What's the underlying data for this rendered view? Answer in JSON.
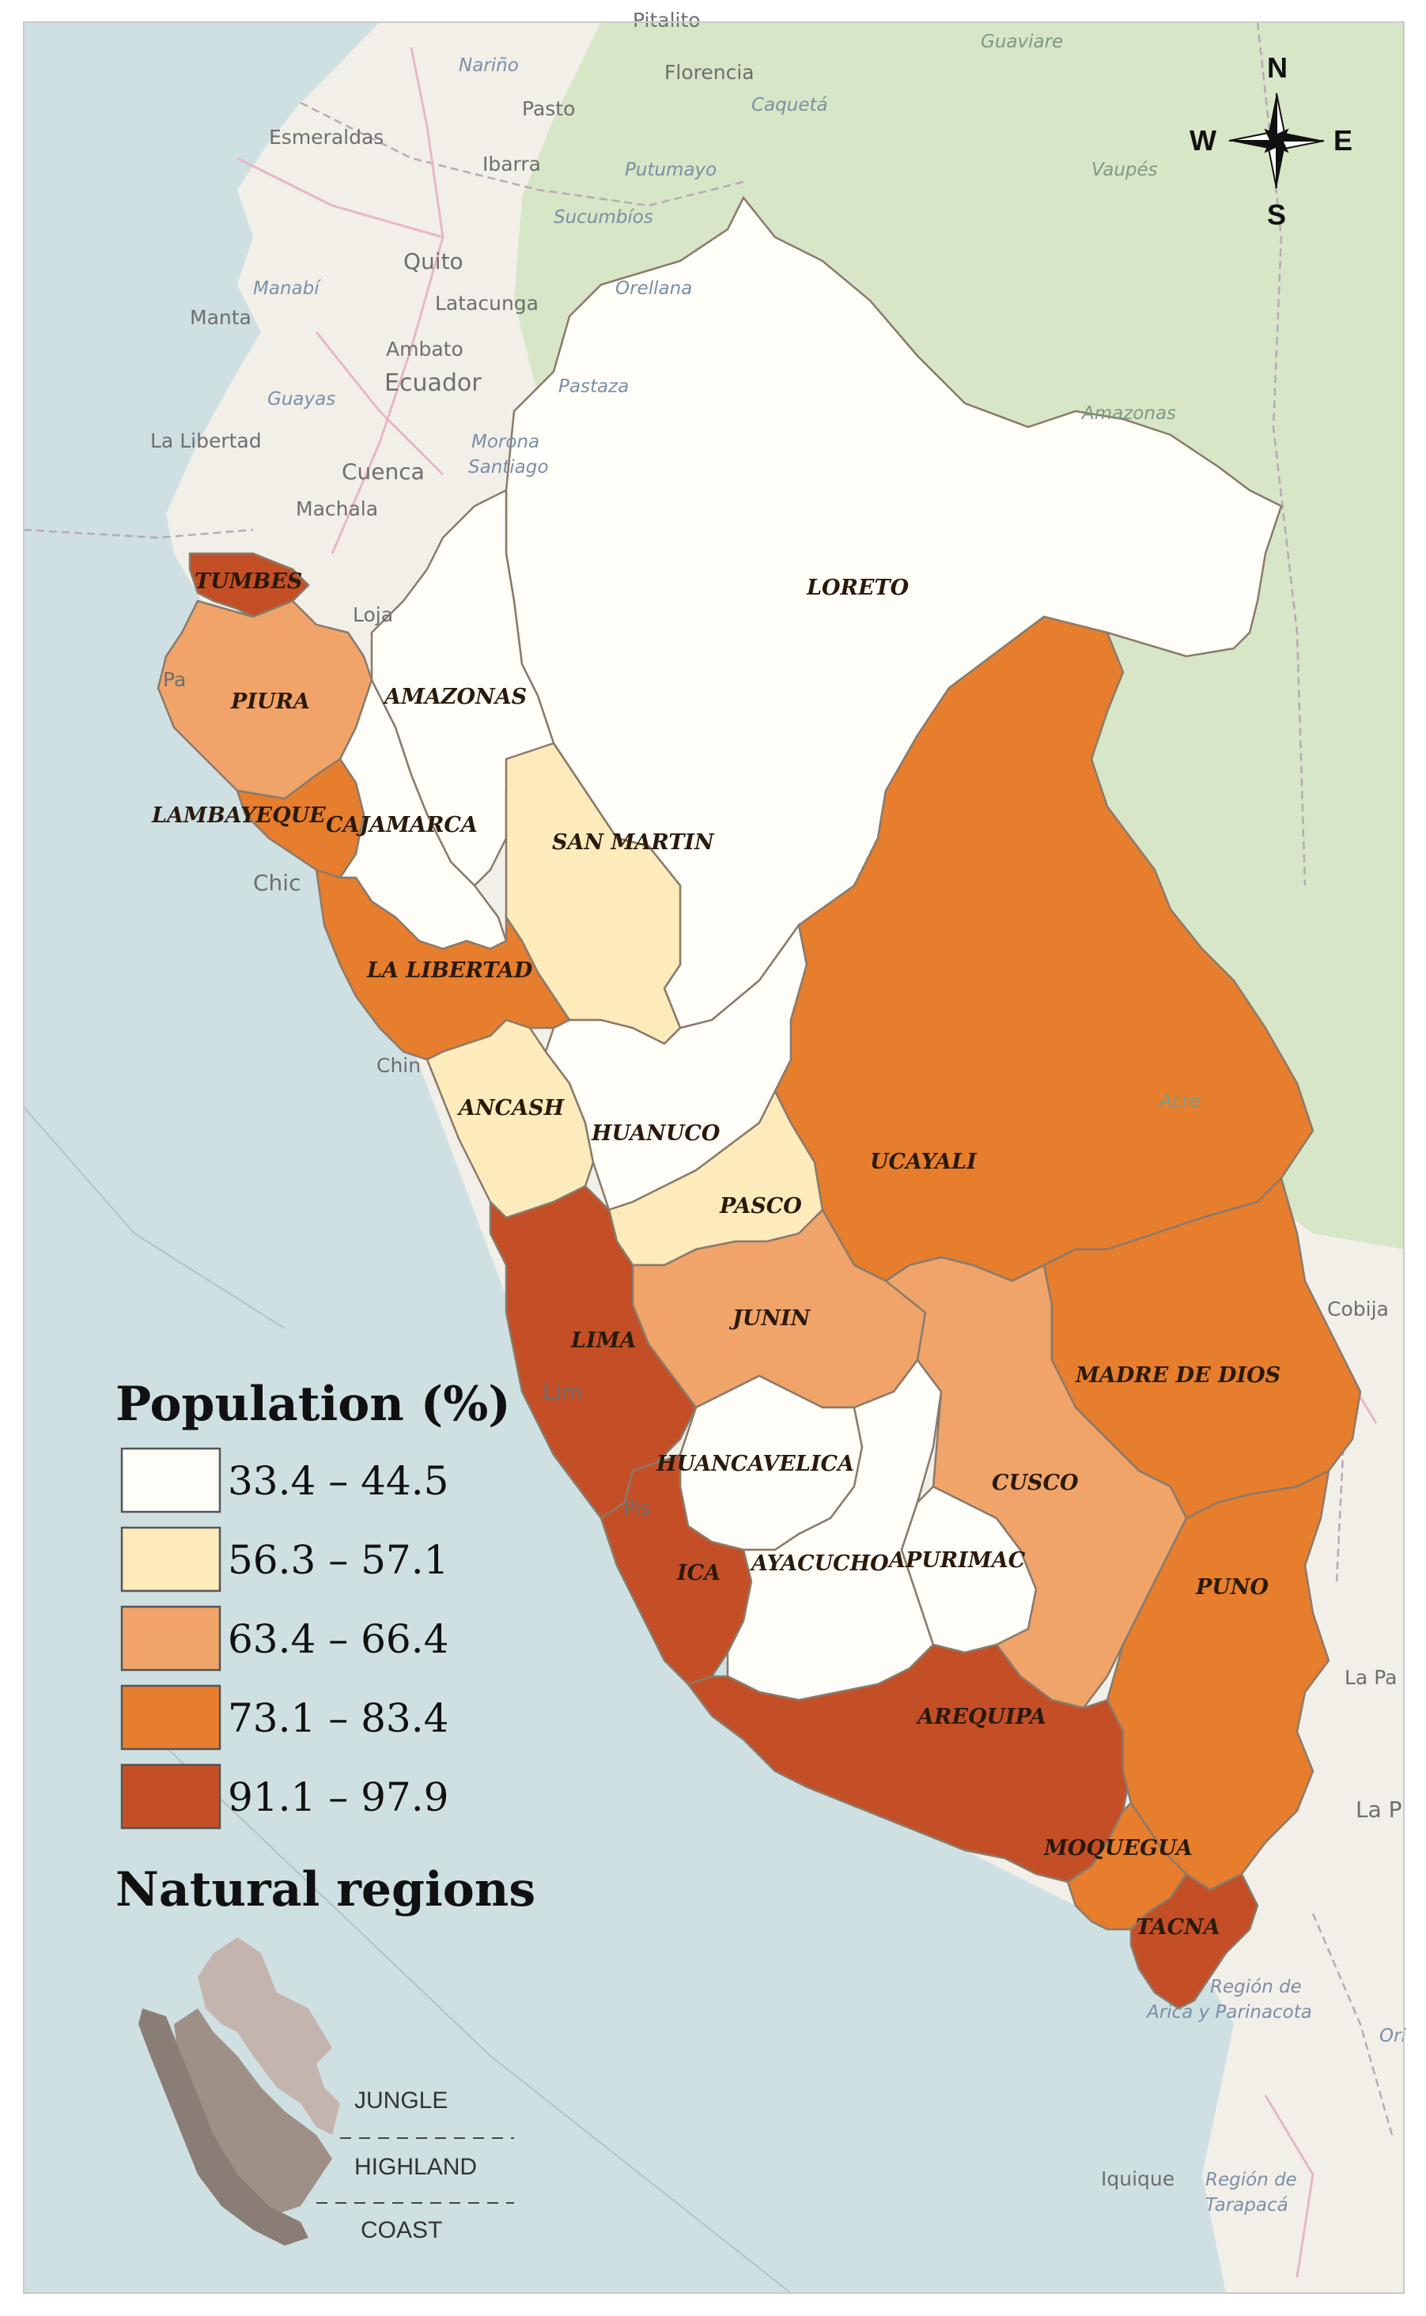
{
  "colors": {
    "ocean": "#cfe0e2",
    "land": "#f2efe9",
    "forest": "#d7e6c6",
    "class1": "#fffdf7",
    "class2": "#fdebbc",
    "class3": "#f0a46a",
    "class4": "#e67e2e",
    "class5": "#c44f27",
    "jungle": "#c3b5ad",
    "highland": "#9e8f87",
    "coast": "#8a7d76"
  },
  "compass": {
    "n": "N",
    "s": "S",
    "e": "E",
    "w": "W"
  },
  "legend": {
    "title": "Population (%)",
    "classes": [
      {
        "label": "33.4 – 44.5",
        "color": "#fffdf7"
      },
      {
        "label": "56.3 – 57.1",
        "color": "#fdebbc"
      },
      {
        "label": "63.4 – 66.4",
        "color": "#f0a46a"
      },
      {
        "label": "73.1 – 83.4",
        "color": "#e67e2e"
      },
      {
        "label": "91.1 – 97.9",
        "color": "#c44f27"
      }
    ]
  },
  "regions_legend": {
    "title": "Natural regions",
    "jungle": "JUNGLE",
    "highland": "HIGHLAND",
    "coast": "COAST"
  },
  "departments": {
    "loreto": "LORETO",
    "tumbes": "TUMBES",
    "piura": "PIURA",
    "amazonas": "AMAZONAS",
    "lambayeque": "LAMBAYEQUE",
    "cajamarca": "CAJAMARCA",
    "san_martin": "SAN MARTIN",
    "la_libertad": "LA LIBERTAD",
    "ancash": "ANCASH",
    "huanuco": "HUANUCO",
    "pasco": "PASCO",
    "ucayali": "UCAYALI",
    "junin": "JUNIN",
    "lima": "LIMA",
    "madre_de_dios": "MADRE DE DIOS",
    "huancavelica": "HUANCAVELICA",
    "cusco": "CUSCO",
    "ica": "ICA",
    "ayacucho": "AYACUCHO",
    "apurimac": "APURIMAC",
    "puno": "PUNO",
    "arequipa": "AREQUIPA",
    "moquegua": "MOQUEGUA",
    "tacna": "TACNA"
  },
  "basemap": {
    "pitalito": "Pitalito",
    "narino": "Nariño",
    "florencia": "Florencia",
    "guaviare": "Guaviare",
    "pasto": "Pasto",
    "caqueta": "Caquetá",
    "esmeraldas": "Esmeraldas",
    "ibarra": "Ibarra",
    "putumayo": "Putumayo",
    "vaupes": "Vaupés",
    "sucumbios": "Sucumbíos",
    "quito": "Quito",
    "manabi": "Manabí",
    "orellana": "Orellana",
    "manta": "Manta",
    "latacunga": "Latacunga",
    "ambato": "Ambato",
    "ecuador": "Ecuador",
    "pastaza": "Pastaza",
    "guayas": "Guayas",
    "amazonas_br": "Amazonas",
    "la_libertad_ec": "La Libertad",
    "morona": "Morona",
    "santiago": "Santiago",
    "cuenca": "Cuenca",
    "machala": "Machala",
    "loja": "Loja",
    "pa": "Pa",
    "chic": "Chic",
    "chin": "Chin",
    "acre": "Acre",
    "lim": "Lim",
    "pis": "Pis",
    "cobija": "Cobija",
    "la_paz_short": "La Pa",
    "la_p": "La P",
    "region_arica_1": "Región de",
    "region_arica_2": "Arica y Parinacota",
    "ori": "Ori",
    "iquique": "Iquique",
    "region_tarapaca_1": "Región de",
    "region_tarapaca_2": "Tarapacá"
  }
}
